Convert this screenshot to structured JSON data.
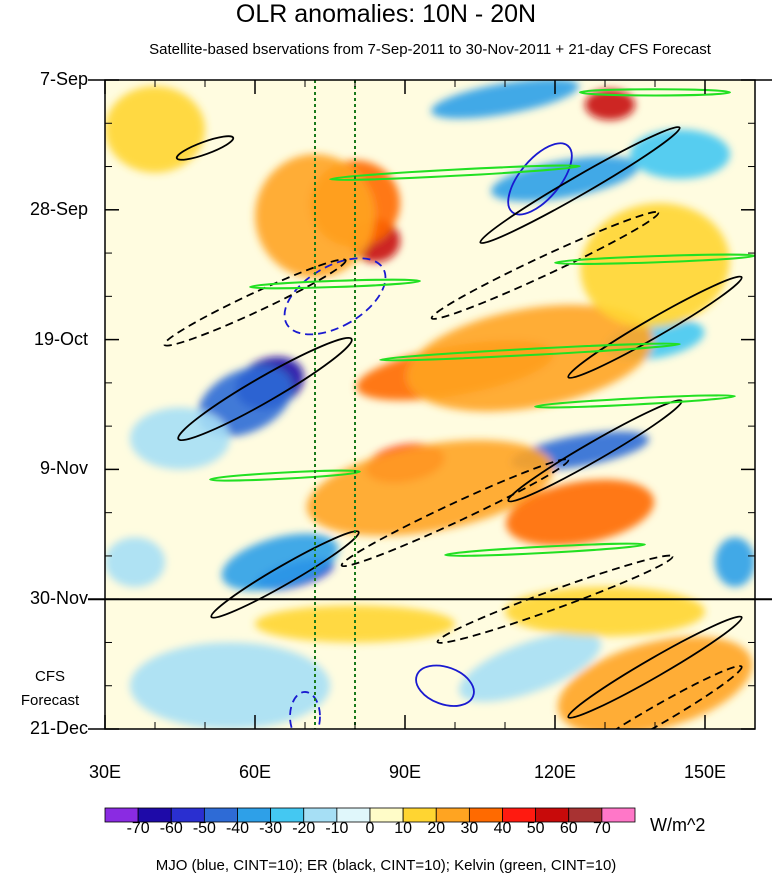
{
  "chart_data": {
    "type": "heatmap",
    "title": "OLR anomalies: 10N - 20N",
    "subtitle": "Satellite-based bservations from 7-Sep-2011 to 30-Nov-2011 + 21-day CFS Forecast",
    "x_axis": {
      "range": [
        30,
        160
      ],
      "ticks": [
        "30E",
        "60E",
        "90E",
        "120E",
        "150E"
      ],
      "tick_values": [
        30,
        60,
        90,
        120,
        150
      ]
    },
    "y_axis": {
      "range": [
        "7-Sep",
        "21-Dec"
      ],
      "ticks": [
        "7-Sep",
        "28-Sep",
        "19-Oct",
        "9-Nov",
        "30-Nov",
        "21-Dec"
      ],
      "tick_days": [
        0,
        21,
        42,
        63,
        84,
        105
      ]
    },
    "forecast_start": "30-Nov",
    "forecast_label": [
      "CFS",
      "Forecast"
    ],
    "reference_longitudes": [
      72,
      80
    ],
    "colorbar": {
      "unit": "W/m^2",
      "labels": [
        "-70",
        "-60",
        "-50",
        "-40",
        "-30",
        "-20",
        "-10",
        "0",
        "10",
        "20",
        "30",
        "40",
        "50",
        "60",
        "70"
      ],
      "colors": [
        "#8a2be2",
        "#1e0aa8",
        "#2a2fd0",
        "#2e6bd6",
        "#2ea0e8",
        "#44c8f2",
        "#a6dff5",
        "#e0f7fb",
        "#fffcc8",
        "#ffd531",
        "#ffa421",
        "#ff6a00",
        "#ff1a10",
        "#c80a0a",
        "#a83232",
        "#ff77c8"
      ]
    },
    "legend": "MJO (blue, CINT=10); ER (black, CINT=10); Kelvin (green, CINT=10)",
    "features": [
      {
        "kind": "anomaly",
        "value": -65,
        "lon": 63,
        "day": 49,
        "lon_span": 14,
        "day_span": 8,
        "tilt": -20
      },
      {
        "kind": "anomaly",
        "value": -45,
        "lon": 58,
        "day": 52,
        "lon_span": 20,
        "day_span": 10,
        "tilt": -25
      },
      {
        "kind": "anomaly",
        "value": -55,
        "lon": 68,
        "day": 80,
        "lon_span": 16,
        "day_span": 4,
        "tilt": -15
      },
      {
        "kind": "anomaly",
        "value": -35,
        "lon": 65,
        "day": 78,
        "lon_span": 24,
        "day_span": 8,
        "tilt": -15
      },
      {
        "kind": "anomaly",
        "value": -40,
        "lon": 110,
        "day": 3,
        "lon_span": 30,
        "day_span": 5,
        "tilt": -10
      },
      {
        "kind": "anomaly",
        "value": -35,
        "lon": 122,
        "day": 16,
        "lon_span": 30,
        "day_span": 6,
        "tilt": -10
      },
      {
        "kind": "anomaly",
        "value": -30,
        "lon": 145,
        "day": 12,
        "lon_span": 20,
        "day_span": 8,
        "tilt": 0
      },
      {
        "kind": "anomaly",
        "value": -45,
        "lon": 125,
        "day": 60,
        "lon_span": 28,
        "day_span": 5,
        "tilt": -10
      },
      {
        "kind": "anomaly",
        "value": -25,
        "lon": 140,
        "day": 42,
        "lon_span": 20,
        "day_span": 6,
        "tilt": -10
      },
      {
        "kind": "anomaly",
        "value": -35,
        "lon": 156,
        "day": 78,
        "lon_span": 8,
        "day_span": 8,
        "tilt": 0
      },
      {
        "kind": "anomaly",
        "value": -20,
        "lon": 115,
        "day": 95,
        "lon_span": 30,
        "day_span": 8,
        "tilt": -20
      },
      {
        "kind": "anomaly",
        "value": -15,
        "lon": 45,
        "day": 58,
        "lon_span": 20,
        "day_span": 10,
        "tilt": 0
      },
      {
        "kind": "anomaly",
        "value": -15,
        "lon": 36,
        "day": 78,
        "lon_span": 12,
        "day_span": 8,
        "tilt": 0
      },
      {
        "kind": "anomaly",
        "value": -12,
        "lon": 55,
        "day": 98,
        "lon_span": 40,
        "day_span": 14,
        "tilt": 0
      },
      {
        "kind": "anomaly",
        "value": 55,
        "lon": 84,
        "day": 26,
        "lon_span": 10,
        "day_span": 7,
        "tilt": 0
      },
      {
        "kind": "anomaly",
        "value": 35,
        "lon": 80,
        "day": 20,
        "lon_span": 18,
        "day_span": 14,
        "tilt": -10
      },
      {
        "kind": "anomaly",
        "value": 25,
        "lon": 72,
        "day": 22,
        "lon_span": 24,
        "day_span": 20,
        "tilt": 0
      },
      {
        "kind": "anomaly",
        "value": 55,
        "lon": 131,
        "day": 4,
        "lon_span": 10,
        "day_span": 5,
        "tilt": 0
      },
      {
        "kind": "anomaly",
        "value": 30,
        "lon": 100,
        "day": 47,
        "lon_span": 40,
        "day_span": 8,
        "tilt": -10
      },
      {
        "kind": "anomaly",
        "value": 20,
        "lon": 115,
        "day": 45,
        "lon_span": 50,
        "day_span": 16,
        "tilt": -10
      },
      {
        "kind": "anomaly",
        "value": 45,
        "lon": 90,
        "day": 62,
        "lon_span": 16,
        "day_span": 6,
        "tilt": -10
      },
      {
        "kind": "anomaly",
        "value": 25,
        "lon": 95,
        "day": 66,
        "lon_span": 50,
        "day_span": 14,
        "tilt": -10
      },
      {
        "kind": "anomaly",
        "value": 30,
        "lon": 125,
        "day": 70,
        "lon_span": 30,
        "day_span": 10,
        "tilt": -10
      },
      {
        "kind": "anomaly",
        "value": 15,
        "lon": 140,
        "day": 30,
        "lon_span": 30,
        "day_span": 20,
        "tilt": -10
      },
      {
        "kind": "anomaly",
        "value": 20,
        "lon": 140,
        "day": 98,
        "lon_span": 40,
        "day_span": 14,
        "tilt": -15
      },
      {
        "kind": "anomaly",
        "value": 15,
        "lon": 80,
        "day": 88,
        "lon_span": 40,
        "day_span": 6,
        "tilt": 0
      },
      {
        "kind": "anomaly",
        "value": 10,
        "lon": 40,
        "day": 8,
        "lon_span": 20,
        "day_span": 14,
        "tilt": 0
      },
      {
        "kind": "anomaly",
        "value": 15,
        "lon": 130,
        "day": 86,
        "lon_span": 40,
        "day_span": 8,
        "tilt": 0
      },
      {
        "kind": "mjo",
        "value": 10,
        "lon": 76,
        "day": 35,
        "lon_span": 12,
        "day_span": 18,
        "tilt": 60,
        "dashed": true
      },
      {
        "kind": "mjo",
        "value": 10,
        "lon": 98,
        "day": 98,
        "lon_span": 12,
        "day_span": 6,
        "tilt": 20,
        "dashed": false
      },
      {
        "kind": "mjo",
        "value": 10,
        "lon": 70,
        "day": 103,
        "lon_span": 6,
        "day_span": 8,
        "tilt": 0,
        "dashed": true
      },
      {
        "kind": "mjo",
        "value": 10,
        "lon": 117,
        "day": 16,
        "lon_span": 8,
        "day_span": 14,
        "tilt": 40,
        "dashed": false
      },
      {
        "kind": "er",
        "value": 10,
        "lon": 62,
        "day": 50,
        "lon_span": 40,
        "day_span": 4,
        "tilt": -30,
        "dashed": false
      },
      {
        "kind": "er",
        "value": 10,
        "lon": 66,
        "day": 80,
        "lon_span": 34,
        "day_span": 3,
        "tilt": -30,
        "dashed": false
      },
      {
        "kind": "er",
        "value": 10,
        "lon": 128,
        "day": 60,
        "lon_span": 40,
        "day_span": 3,
        "tilt": -30,
        "dashed": false
      },
      {
        "kind": "er",
        "value": 10,
        "lon": 125,
        "day": 17,
        "lon_span": 46,
        "day_span": 3,
        "tilt": -30,
        "dashed": false
      },
      {
        "kind": "er",
        "value": 10,
        "lon": 140,
        "day": 40,
        "lon_span": 40,
        "day_span": 3,
        "tilt": -30,
        "dashed": false
      },
      {
        "kind": "er",
        "value": 10,
        "lon": 140,
        "day": 95,
        "lon_span": 40,
        "day_span": 3,
        "tilt": -30,
        "dashed": false
      },
      {
        "kind": "er",
        "value": 10,
        "lon": 50,
        "day": 11,
        "lon_span": 12,
        "day_span": 2,
        "tilt": -20,
        "dashed": false
      },
      {
        "kind": "er",
        "value": -10,
        "lon": 60,
        "day": 36,
        "lon_span": 40,
        "day_span": 3,
        "tilt": -25,
        "dashed": true
      },
      {
        "kind": "er",
        "value": -10,
        "lon": 100,
        "day": 70,
        "lon_span": 50,
        "day_span": 3,
        "tilt": -25,
        "dashed": true
      },
      {
        "kind": "er",
        "value": -10,
        "lon": 118,
        "day": 30,
        "lon_span": 50,
        "day_span": 3,
        "tilt": -25,
        "dashed": true
      },
      {
        "kind": "er",
        "value": -10,
        "lon": 120,
        "day": 84,
        "lon_span": 50,
        "day_span": 3,
        "tilt": -20,
        "dashed": true
      },
      {
        "kind": "er",
        "value": -10,
        "lon": 140,
        "day": 103,
        "lon_span": 40,
        "day_span": 3,
        "tilt": -30,
        "dashed": true
      },
      {
        "kind": "kelvin",
        "value": 10,
        "lon": 100,
        "day": 15,
        "lon_span": 50,
        "day_span": 1,
        "tilt": -3,
        "dashed": false
      },
      {
        "kind": "kelvin",
        "value": 10,
        "lon": 115,
        "day": 44,
        "lon_span": 60,
        "day_span": 1,
        "tilt": -3,
        "dashed": false
      },
      {
        "kind": "kelvin",
        "value": 10,
        "lon": 66,
        "day": 64,
        "lon_span": 30,
        "day_span": 1,
        "tilt": -3,
        "dashed": false
      },
      {
        "kind": "kelvin",
        "value": 10,
        "lon": 118,
        "day": 76,
        "lon_span": 40,
        "day_span": 1,
        "tilt": -3,
        "dashed": false
      },
      {
        "kind": "kelvin",
        "value": 10,
        "lon": 140,
        "day": 29,
        "lon_span": 40,
        "day_span": 1,
        "tilt": -2,
        "dashed": false
      },
      {
        "kind": "kelvin",
        "value": 10,
        "lon": 76,
        "day": 33,
        "lon_span": 34,
        "day_span": 1,
        "tilt": -2,
        "dashed": false
      },
      {
        "kind": "kelvin",
        "value": 10,
        "lon": 140,
        "day": 2,
        "lon_span": 30,
        "day_span": 1,
        "tilt": 0,
        "dashed": false
      },
      {
        "kind": "kelvin",
        "value": 10,
        "lon": 136,
        "day": 52,
        "lon_span": 40,
        "day_span": 1,
        "tilt": -3,
        "dashed": false
      }
    ]
  }
}
